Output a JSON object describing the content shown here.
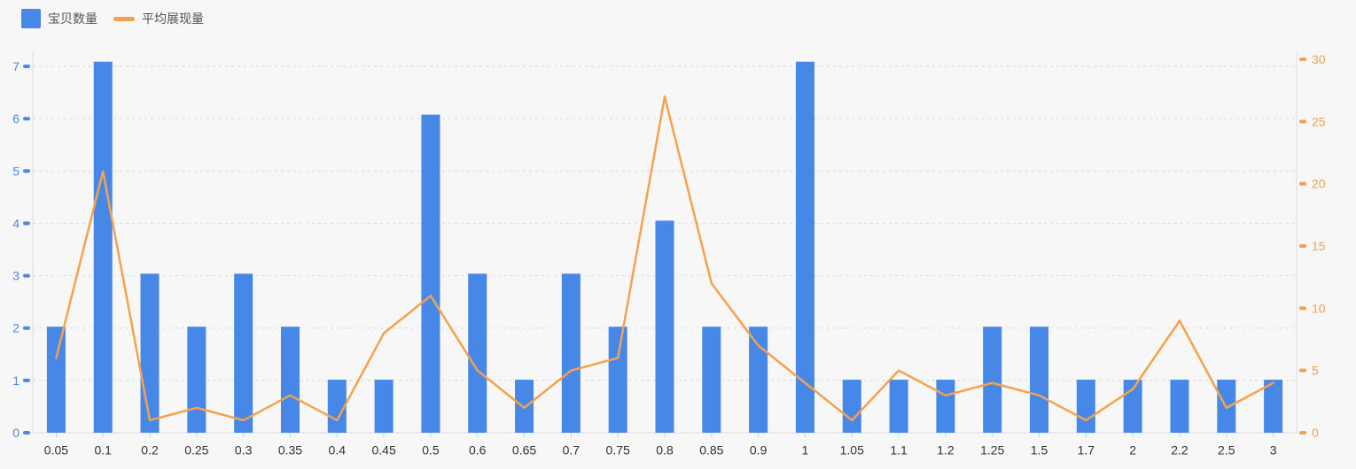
{
  "legend": {
    "items": [
      {
        "label": "宝贝数量",
        "type": "bar",
        "color": "#4687e8"
      },
      {
        "label": "平均展现量",
        "type": "line",
        "color": "#f6a14e"
      }
    ]
  },
  "chart_data": {
    "type": "bar+line",
    "categories": [
      "0.05",
      "0.1",
      "0.2",
      "0.25",
      "0.3",
      "0.35",
      "0.4",
      "0.45",
      "0.5",
      "0.6",
      "0.65",
      "0.7",
      "0.75",
      "0.8",
      "0.85",
      "0.9",
      "1",
      "1.05",
      "1.1",
      "1.2",
      "1.25",
      "1.5",
      "1.7",
      "2",
      "2.2",
      "2.5",
      "3"
    ],
    "series": [
      {
        "name": "宝贝数量",
        "type": "bar",
        "yaxis": "left",
        "color": "#4687e8",
        "values": [
          2,
          7,
          3,
          2,
          3,
          2,
          1,
          1,
          6,
          3,
          1,
          3,
          2,
          4,
          2,
          2,
          7,
          1,
          1,
          1,
          2,
          2,
          1,
          1,
          1,
          1,
          1
        ]
      },
      {
        "name": "平均展现量",
        "type": "line",
        "yaxis": "right",
        "color": "#f6a14e",
        "values": [
          6,
          21,
          1,
          2,
          1,
          3,
          1,
          8,
          11,
          5,
          2,
          5,
          6,
          27,
          12,
          7,
          4,
          1,
          5,
          3,
          4,
          3,
          1,
          3.5,
          9,
          2,
          4
        ]
      }
    ],
    "left_axis": {
      "min": 0,
      "max": 7,
      "interval": 1,
      "tick_labels": [
        "0",
        "1",
        "2",
        "3",
        "4",
        "5",
        "6",
        "7"
      ],
      "color": "#4f87e8"
    },
    "right_axis": {
      "min": 0,
      "max": 30,
      "interval": 5,
      "tick_labels": [
        "0",
        "5",
        "10",
        "15",
        "20",
        "25",
        "30"
      ],
      "color": "#f2a052"
    },
    "grid": true,
    "grid_style": "dotted-horizontal",
    "legend_position": "top-left"
  }
}
